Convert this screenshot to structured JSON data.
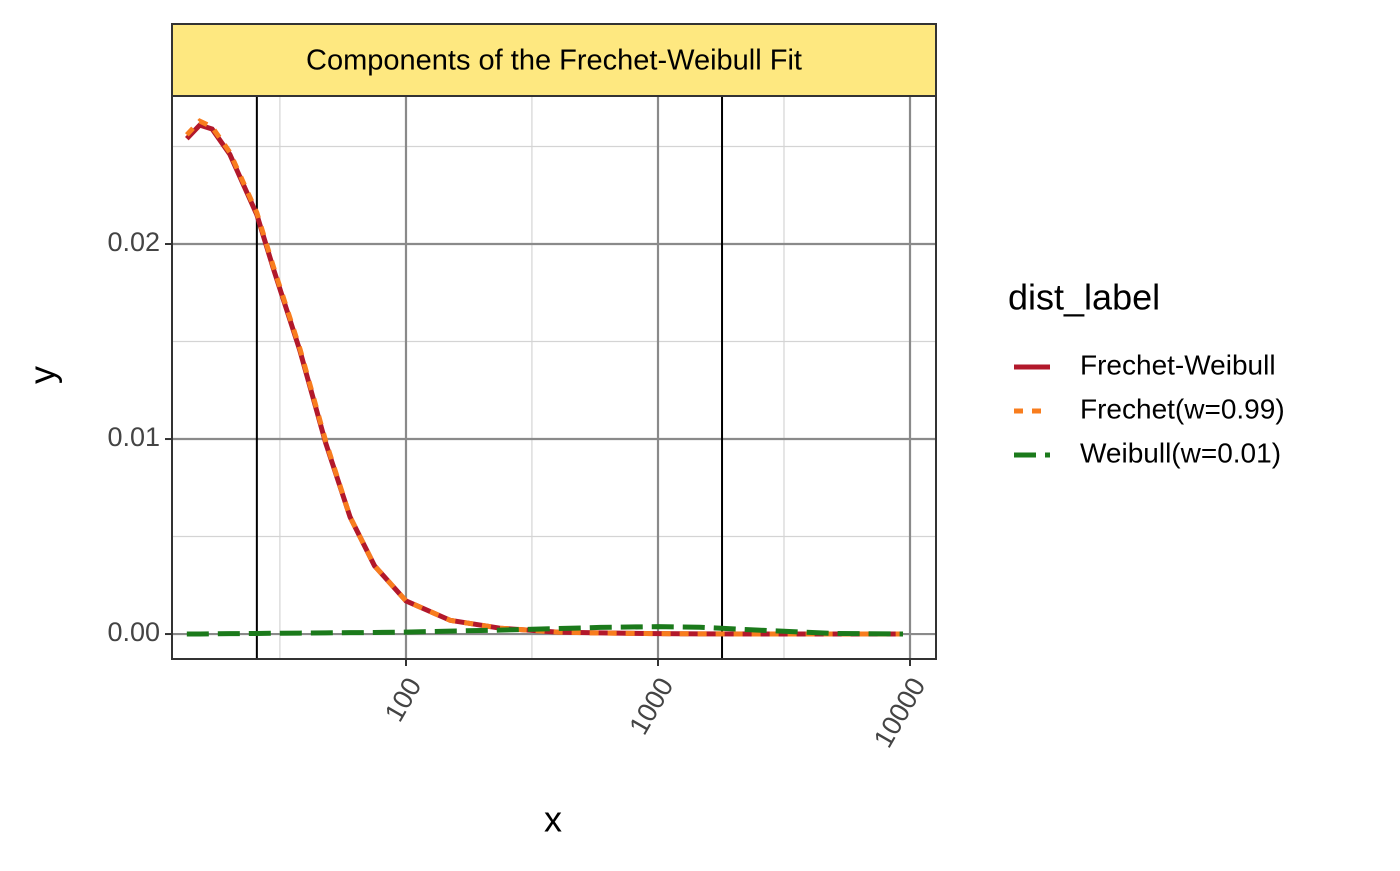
{
  "chart_data": {
    "type": "line",
    "title": "Components of the Frechet-Weibull Fit",
    "x_label": "x",
    "y_label": "y",
    "legend_title": "dist_label",
    "legend": "right",
    "x": [
      13.5,
      15.2,
      17,
      20,
      25.6,
      30,
      38,
      48,
      60,
      75,
      100,
      150,
      236,
      400,
      589,
      1000,
      1466,
      2500,
      5000,
      9380
    ],
    "series": [
      {
        "name": "Frechet-Weibull",
        "color": "#b2182b",
        "dash": "solid",
        "values": [
          0.0254,
          0.0261,
          0.0259,
          0.0246,
          0.0215,
          0.0186,
          0.0145,
          0.0098,
          0.006,
          0.0035,
          0.0017,
          0.0007,
          0.0003,
          0.0001,
          6e-05,
          2e-05,
          1e-05,
          0,
          0,
          0
        ]
      },
      {
        "name": "Frechet(w=0.99)",
        "color": "#f87d1e",
        "dash": "dotted",
        "values": [
          0.0256,
          0.0263,
          0.026,
          0.0247,
          0.0216,
          0.0187,
          0.0146,
          0.0099,
          0.006,
          0.0035,
          0.0017,
          0.0007,
          0.0003,
          0.0001,
          5e-05,
          2e-05,
          1e-05,
          0,
          0,
          0
        ]
      },
      {
        "name": "Weibull(w=0.01)",
        "color": "#1b7a1b",
        "dash": "dashed",
        "values": [
          0,
          0,
          1e-05,
          2e-05,
          3e-05,
          4e-05,
          5e-05,
          6e-05,
          7e-05,
          8e-05,
          0.0001,
          0.00015,
          0.0002,
          0.00028,
          0.00034,
          0.00038,
          0.00035,
          0.0002,
          3e-05,
          0
        ]
      }
    ],
    "vlines": [
      25.6,
      1795
    ],
    "xlog": true,
    "xlim": [
      11.79,
      12680
    ],
    "xticks": [
      100,
      1000,
      10000
    ],
    "xminor": [
      31.6,
      316,
      3162
    ],
    "ylim": [
      -0.00128,
      0.02759
    ],
    "yticks": [
      {
        "value": 0,
        "label": "0.00"
      },
      {
        "value": 0.01,
        "label": "0.01"
      },
      {
        "value": 0.02,
        "label": "0.02"
      }
    ],
    "yminor": [
      0.005,
      0.015,
      0.025
    ],
    "grid": true
  }
}
